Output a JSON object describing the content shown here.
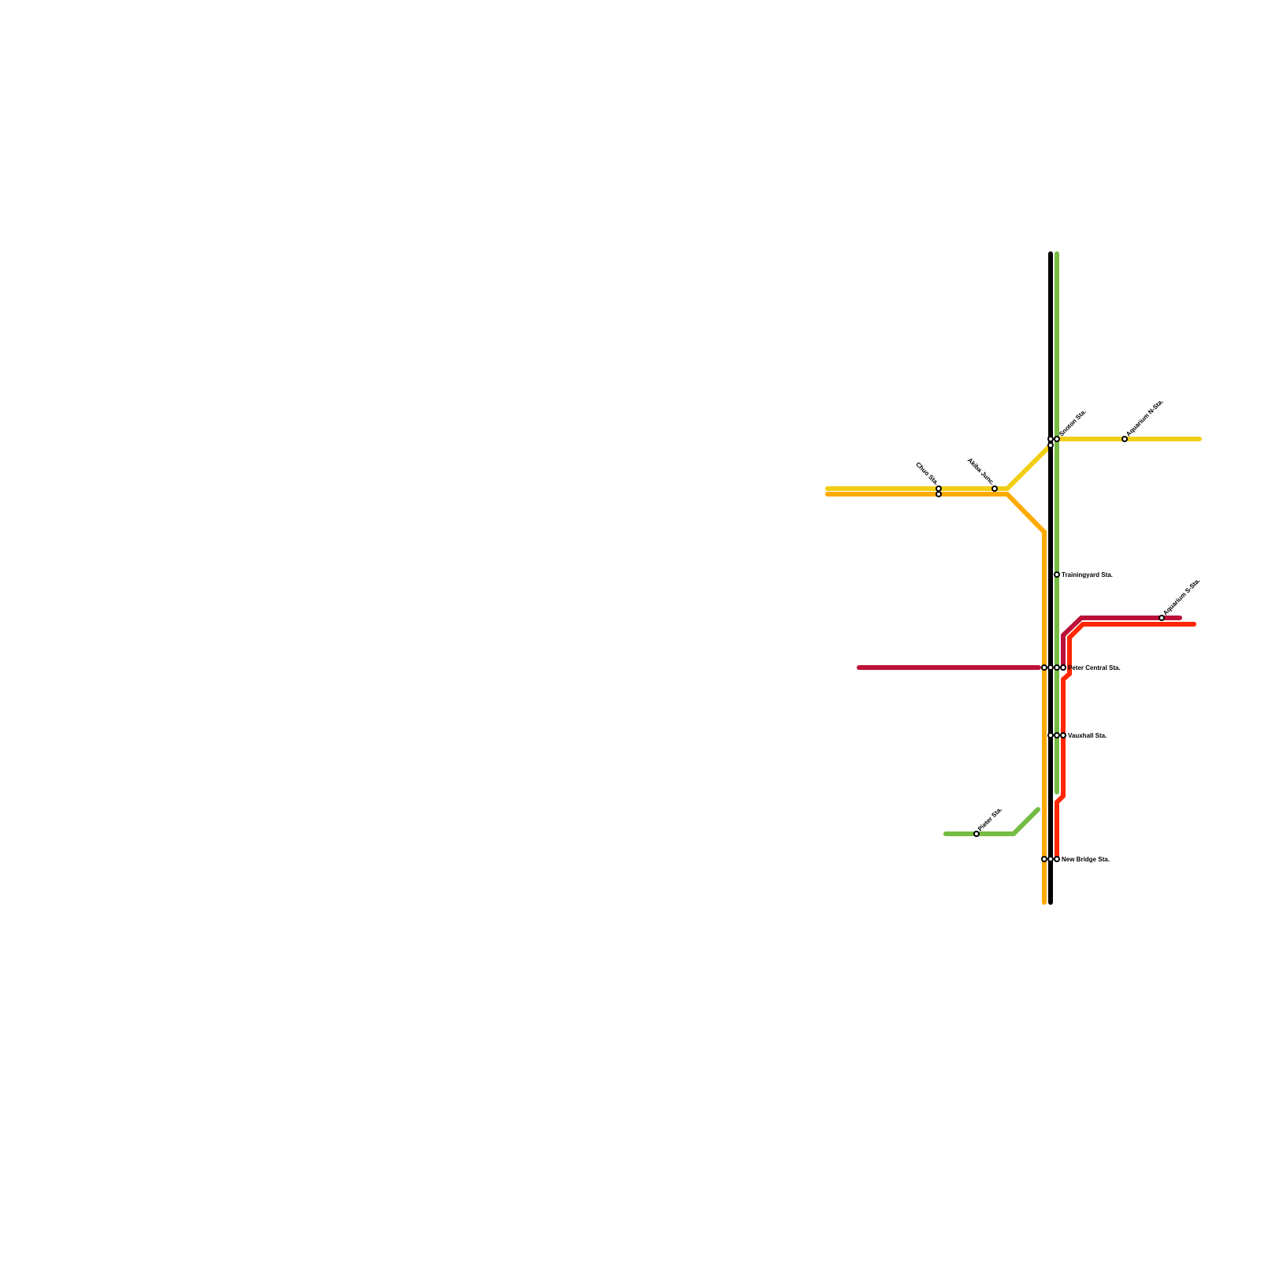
{
  "map": {
    "lines": [
      {
        "id": "yellow",
        "color": "#f0ce15"
      },
      {
        "id": "orange",
        "color": "#ffaa00"
      },
      {
        "id": "black",
        "color": "#000000"
      },
      {
        "id": "green",
        "color": "#76bc43"
      },
      {
        "id": "crimson",
        "color": "#bd1038"
      },
      {
        "id": "red",
        "color": "#ff2600"
      }
    ],
    "stations": {
      "chuo": "Chuo Sta.",
      "akiba": "Akiba Junc.",
      "snoton": "Snoton Sta.",
      "aquarium_n": "Aquarium N-Sta.",
      "trainingyard": "Trainingyard Sta.",
      "aquarium_s": "Aquarium S-Sta.",
      "peter_central": "Peter Central Sta.",
      "vauxhall": "Vauxhall Sta.",
      "pieter": "Pieter Sta.",
      "new_bridge": "New Bridge Sta."
    }
  }
}
